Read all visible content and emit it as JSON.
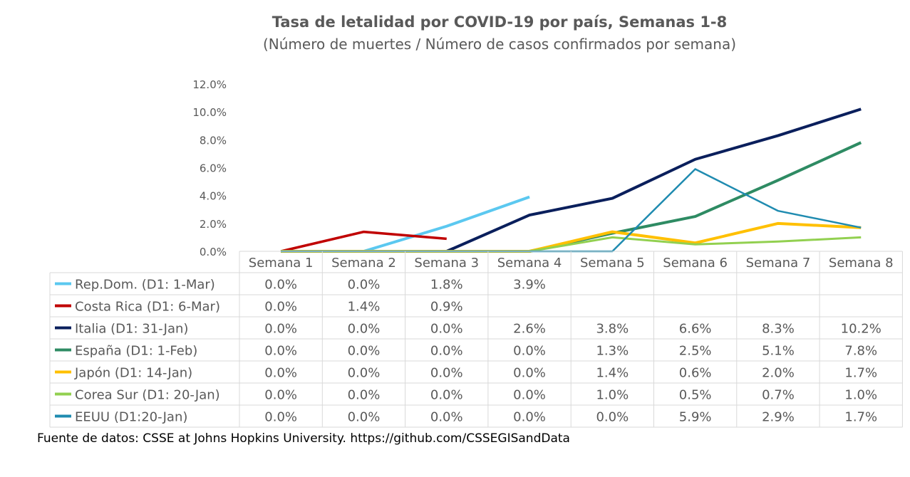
{
  "chart_data": {
    "type": "line",
    "title": "Tasa de letalidad por COVID-19 por país, Semanas 1-8",
    "subtitle": "(Número de muertes / Número de casos confirmados por semana)",
    "categories": [
      "Semana 1",
      "Semana 2",
      "Semana 3",
      "Semana 4",
      "Semana 5",
      "Semana 6",
      "Semana 7",
      "Semana 8"
    ],
    "y_ticks": [
      "0.0%",
      "2.0%",
      "4.0%",
      "6.0%",
      "8.0%",
      "10.0%",
      "12.0%"
    ],
    "ylim": [
      0,
      12
    ],
    "grid": false,
    "legend": "data-table",
    "series": [
      {
        "name": "Rep.Dom. (D1: 1-Mar)",
        "color": "#5BC8F0",
        "width": 4,
        "values": [
          0.0,
          0.0,
          1.8,
          3.9,
          null,
          null,
          null,
          null
        ],
        "labels": [
          "0.0%",
          "0.0%",
          "1.8%",
          "3.9%",
          "",
          "",
          "",
          ""
        ]
      },
      {
        "name": "Costa Rica (D1: 6-Mar)",
        "color": "#C00000",
        "width": 3.5,
        "values": [
          0.0,
          1.4,
          0.9,
          null,
          null,
          null,
          null,
          null
        ],
        "labels": [
          "0.0%",
          "1.4%",
          "0.9%",
          "",
          "",
          "",
          "",
          ""
        ]
      },
      {
        "name": "Italia (D1: 31-Jan)",
        "color": "#0A1F5C",
        "width": 4,
        "values": [
          0.0,
          0.0,
          0.0,
          2.6,
          3.8,
          6.6,
          8.3,
          10.2
        ],
        "labels": [
          "0.0%",
          "0.0%",
          "0.0%",
          "2.6%",
          "3.8%",
          "6.6%",
          "8.3%",
          "10.2%"
        ]
      },
      {
        "name": "España (D1: 1-Feb)",
        "color": "#2E8B63",
        "width": 4,
        "values": [
          0.0,
          0.0,
          0.0,
          0.0,
          1.3,
          2.5,
          5.1,
          7.8
        ],
        "labels": [
          "0.0%",
          "0.0%",
          "0.0%",
          "0.0%",
          "1.3%",
          "2.5%",
          "5.1%",
          "7.8%"
        ]
      },
      {
        "name": "Japón (D1: 14-Jan)",
        "color": "#FFC000",
        "width": 4,
        "values": [
          0.0,
          0.0,
          0.0,
          0.0,
          1.4,
          0.6,
          2.0,
          1.7
        ],
        "labels": [
          "0.0%",
          "0.0%",
          "0.0%",
          "0.0%",
          "1.4%",
          "0.6%",
          "2.0%",
          "1.7%"
        ]
      },
      {
        "name": "Corea Sur (D1: 20-Jan)",
        "color": "#92D050",
        "width": 3,
        "values": [
          0.0,
          0.0,
          0.0,
          0.0,
          1.0,
          0.5,
          0.7,
          1.0
        ],
        "labels": [
          "0.0%",
          "0.0%",
          "0.0%",
          "0.0%",
          "1.0%",
          "0.5%",
          "0.7%",
          "1.0%"
        ]
      },
      {
        "name": "EEUU (D1:20-Jan)",
        "color": "#1F8BB0",
        "width": 2.5,
        "values": [
          0.0,
          0.0,
          0.0,
          0.0,
          0.0,
          5.9,
          2.9,
          1.7
        ],
        "labels": [
          "0.0%",
          "0.0%",
          "0.0%",
          "0.0%",
          "0.0%",
          "5.9%",
          "2.9%",
          "1.7%"
        ]
      }
    ]
  },
  "source": "Fuente de datos: CSSE at Johns Hopkins University. https://github.com/CSSEGISandData"
}
